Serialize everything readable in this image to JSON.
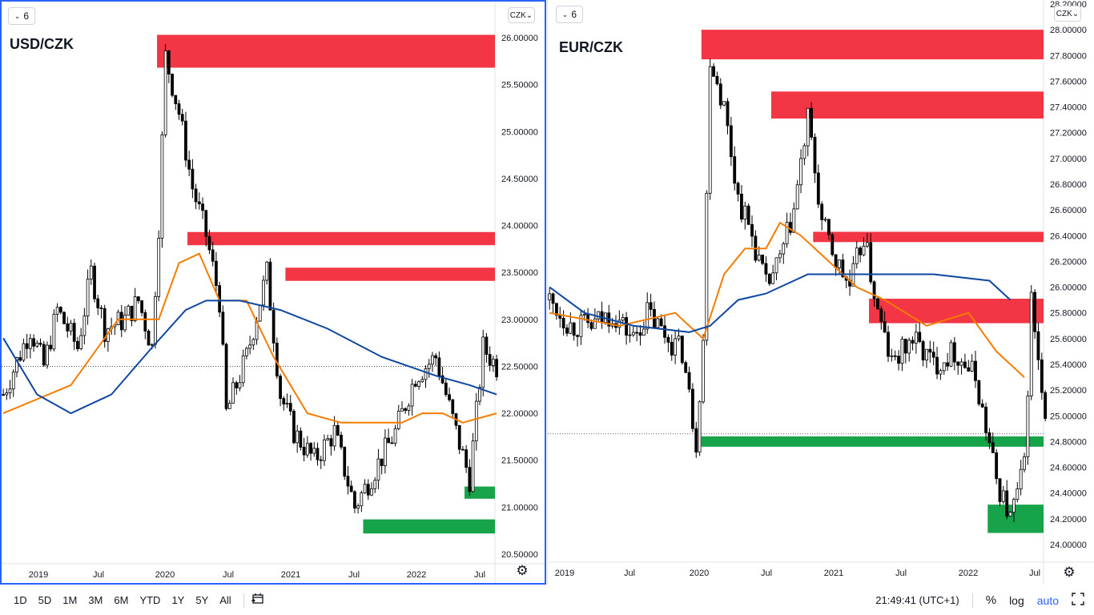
{
  "colors": {
    "accent": "#2962ff",
    "supply": "#f23645",
    "demand": "#089981",
    "ma_fast": "#f57c00",
    "ma_slow": "#0d47a1"
  },
  "toolbar": {
    "ranges": [
      "1D",
      "5D",
      "1M",
      "3M",
      "6M",
      "YTD",
      "1Y",
      "5Y",
      "All"
    ],
    "compare_icon": "calendar-range-icon",
    "clock": "21:49:41 (UTC+1)",
    "percent_label": "%",
    "log_label": "log",
    "auto_label": "auto",
    "fullscreen_icon": "fullscreen-icon"
  },
  "left": {
    "interval": "6",
    "currency": "CZK",
    "symbol": "USD/CZK",
    "settings_icon": "gear-icon"
  },
  "right": {
    "interval": "6",
    "currency": "CZK",
    "symbol": "EUR/CZK",
    "settings_icon": "gear-icon"
  },
  "chart_data": [
    {
      "type": "candlestick",
      "title": "USD/CZK",
      "ylim": [
        20.5,
        26.0
      ],
      "y_ticks": [
        "26.00000",
        "25.50000",
        "25.00000",
        "24.50000",
        "24.00000",
        "23.50000",
        "23.00000",
        "22.50000",
        "22.00000",
        "21.50000",
        "21.00000",
        "20.50000"
      ],
      "x_ticks": [
        "2019",
        "Jul",
        "2020",
        "Jul",
        "2021",
        "Jul",
        "2022",
        "Jul"
      ],
      "last_price": 22.5,
      "close_path": [
        [
          0,
          22.2
        ],
        [
          8,
          22.9
        ],
        [
          12,
          22.5
        ],
        [
          16,
          23.1
        ],
        [
          22,
          22.7
        ],
        [
          26,
          23.5
        ],
        [
          30,
          22.9
        ],
        [
          36,
          23.0
        ],
        [
          40,
          23.2
        ],
        [
          44,
          22.7
        ],
        [
          46,
          24.0
        ],
        [
          48,
          25.8
        ],
        [
          52,
          25.2
        ],
        [
          56,
          24.4
        ],
        [
          60,
          23.9
        ],
        [
          64,
          23.2
        ],
        [
          66,
          22.0
        ],
        [
          72,
          22.6
        ],
        [
          78,
          23.5
        ],
        [
          82,
          22.2
        ],
        [
          86,
          21.8
        ],
        [
          92,
          21.5
        ],
        [
          98,
          21.8
        ],
        [
          104,
          21.0
        ],
        [
          110,
          21.4
        ],
        [
          116,
          21.8
        ],
        [
          122,
          22.4
        ],
        [
          128,
          22.6
        ],
        [
          134,
          21.8
        ],
        [
          138,
          21.3
        ],
        [
          142,
          22.7
        ],
        [
          146,
          22.5
        ]
      ],
      "ma_fast": [
        [
          0,
          22.0
        ],
        [
          20,
          22.3
        ],
        [
          34,
          23.0
        ],
        [
          46,
          23.0
        ],
        [
          52,
          23.6
        ],
        [
          58,
          23.7
        ],
        [
          64,
          23.2
        ],
        [
          72,
          23.2
        ],
        [
          80,
          22.6
        ],
        [
          90,
          22.0
        ],
        [
          100,
          21.9
        ],
        [
          110,
          21.9
        ],
        [
          118,
          21.9
        ],
        [
          124,
          22.0
        ],
        [
          130,
          22.0
        ],
        [
          136,
          21.9
        ],
        [
          146,
          22.0
        ]
      ],
      "ma_slow": [
        [
          0,
          22.8
        ],
        [
          10,
          22.2
        ],
        [
          20,
          22.0
        ],
        [
          32,
          22.2
        ],
        [
          44,
          22.7
        ],
        [
          54,
          23.1
        ],
        [
          60,
          23.2
        ],
        [
          70,
          23.2
        ],
        [
          82,
          23.1
        ],
        [
          96,
          22.9
        ],
        [
          112,
          22.6
        ],
        [
          128,
          22.4
        ],
        [
          138,
          22.3
        ],
        [
          146,
          22.2
        ]
      ],
      "zones": [
        {
          "kind": "supply",
          "from": 46,
          "y_top": 26.03,
          "y_bottom": 25.68
        },
        {
          "kind": "supply",
          "from": 55,
          "y_top": 23.93,
          "y_bottom": 23.79
        },
        {
          "kind": "supply",
          "from": 84,
          "y_top": 23.55,
          "y_bottom": 23.41
        },
        {
          "kind": "demand",
          "from": 137,
          "y_top": 21.22,
          "y_bottom": 21.09
        },
        {
          "kind": "demand",
          "from": 107,
          "y_top": 20.87,
          "y_bottom": 20.72
        }
      ]
    },
    {
      "type": "candlestick",
      "title": "EUR/CZK",
      "ylim": [
        24.0,
        28.2
      ],
      "y_ticks": [
        "28.20000",
        "28.00000",
        "27.80000",
        "27.60000",
        "27.40000",
        "27.20000",
        "27.00000",
        "26.80000",
        "26.60000",
        "26.40000",
        "26.20000",
        "26.00000",
        "25.80000",
        "25.60000",
        "25.40000",
        "25.20000",
        "25.00000",
        "24.80000",
        "24.60000",
        "24.40000",
        "24.20000",
        "24.00000"
      ],
      "x_ticks": [
        "2019",
        "Jul",
        "2020",
        "Jul",
        "2021",
        "Jul",
        "2022",
        "Jul"
      ],
      "last_price": 24.86,
      "close_path": [
        [
          0,
          25.9
        ],
        [
          6,
          25.7
        ],
        [
          12,
          25.7
        ],
        [
          18,
          25.8
        ],
        [
          24,
          25.6
        ],
        [
          28,
          25.8
        ],
        [
          34,
          25.6
        ],
        [
          38,
          25.5
        ],
        [
          42,
          24.8
        ],
        [
          44,
          25.6
        ],
        [
          46,
          27.8
        ],
        [
          50,
          27.4
        ],
        [
          54,
          26.7
        ],
        [
          58,
          26.4
        ],
        [
          62,
          26.0
        ],
        [
          66,
          26.2
        ],
        [
          70,
          26.6
        ],
        [
          74,
          27.3
        ],
        [
          78,
          26.5
        ],
        [
          82,
          26.2
        ],
        [
          86,
          26.0
        ],
        [
          90,
          26.4
        ],
        [
          94,
          25.8
        ],
        [
          98,
          25.4
        ],
        [
          104,
          25.6
        ],
        [
          110,
          25.4
        ],
        [
          116,
          25.5
        ],
        [
          122,
          25.3
        ],
        [
          128,
          24.5
        ],
        [
          132,
          24.2
        ],
        [
          136,
          24.6
        ],
        [
          138,
          25.9
        ],
        [
          142,
          24.9
        ]
      ],
      "ma_fast": [
        [
          0,
          25.8
        ],
        [
          20,
          25.7
        ],
        [
          36,
          25.8
        ],
        [
          44,
          25.6
        ],
        [
          50,
          26.1
        ],
        [
          56,
          26.3
        ],
        [
          62,
          26.3
        ],
        [
          66,
          26.5
        ],
        [
          72,
          26.4
        ],
        [
          80,
          26.2
        ],
        [
          88,
          26.0
        ],
        [
          96,
          25.9
        ],
        [
          108,
          25.7
        ],
        [
          120,
          25.8
        ],
        [
          128,
          25.5
        ],
        [
          136,
          25.3
        ]
      ],
      "ma_slow": [
        [
          0,
          26.0
        ],
        [
          10,
          25.8
        ],
        [
          24,
          25.7
        ],
        [
          40,
          25.65
        ],
        [
          46,
          25.7
        ],
        [
          54,
          25.9
        ],
        [
          62,
          25.95
        ],
        [
          74,
          26.1
        ],
        [
          84,
          26.1
        ],
        [
          96,
          26.1
        ],
        [
          110,
          26.1
        ],
        [
          126,
          26.05
        ],
        [
          132,
          25.9
        ]
      ],
      "zones": [
        {
          "kind": "supply",
          "from": 44,
          "y_top": 28.0,
          "y_bottom": 27.77
        },
        {
          "kind": "supply",
          "from": 64,
          "y_top": 27.52,
          "y_bottom": 27.31
        },
        {
          "kind": "supply",
          "from": 76,
          "y_top": 26.43,
          "y_bottom": 26.35
        },
        {
          "kind": "supply",
          "from": 92,
          "y_top": 25.91,
          "y_bottom": 25.72
        },
        {
          "kind": "demand",
          "from": 44,
          "y_top": 24.84,
          "y_bottom": 24.76
        },
        {
          "kind": "demand",
          "from": 126,
          "y_top": 24.31,
          "y_bottom": 24.09
        }
      ]
    }
  ]
}
